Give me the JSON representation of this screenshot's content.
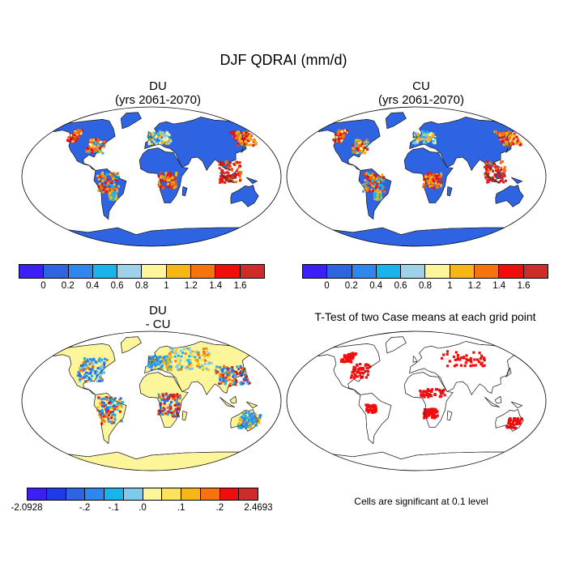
{
  "figure": {
    "title": "DJF QDRAI (mm/d)",
    "panels": [
      {
        "id": "du",
        "title_line1": "DU",
        "title_line2": "(yrs 2061-2070)"
      },
      {
        "id": "cu",
        "title_line1": "CU",
        "title_line2": "(yrs 2061-2070)"
      },
      {
        "id": "diff",
        "title_line1": "DU",
        "title_line2": "- CU"
      },
      {
        "id": "ttest",
        "title_line1": "T-Test of two Case means at each grid point",
        "title_line2": ""
      }
    ],
    "significance_note": "Cells are significant at 0.1 level"
  },
  "colorbars": {
    "absolute": {
      "colors": [
        "#3b1ff5",
        "#2e64e2",
        "#2f86ef",
        "#1ab4ec",
        "#9fd1e9",
        "#fdf59a",
        "#f6b716",
        "#f6730d",
        "#f00d0d",
        "#cf2b2b"
      ],
      "labels": [
        "0",
        "0.2",
        "0.4",
        "0.6",
        "0.8",
        "1",
        "1.2",
        "1.4",
        "1.6"
      ]
    },
    "difference": {
      "colors": [
        "#3b1ff5",
        "#1f3ae8",
        "#2e64e2",
        "#2f86ef",
        "#1ab4ec",
        "#7ccbee",
        "#fdf59a",
        "#fde35c",
        "#f6b716",
        "#f6730d",
        "#f00d0d",
        "#cf2b2b"
      ],
      "labels": [
        "-2.0928",
        "-.2",
        "-.1",
        ".0",
        ".1",
        ".2",
        "2.4693"
      ]
    }
  },
  "map_colors": {
    "ocean": "#ffffff",
    "land_base_abs": "#2e64e2",
    "land_base_diff": "#fdf59a",
    "significant": "#f00d0d"
  }
}
